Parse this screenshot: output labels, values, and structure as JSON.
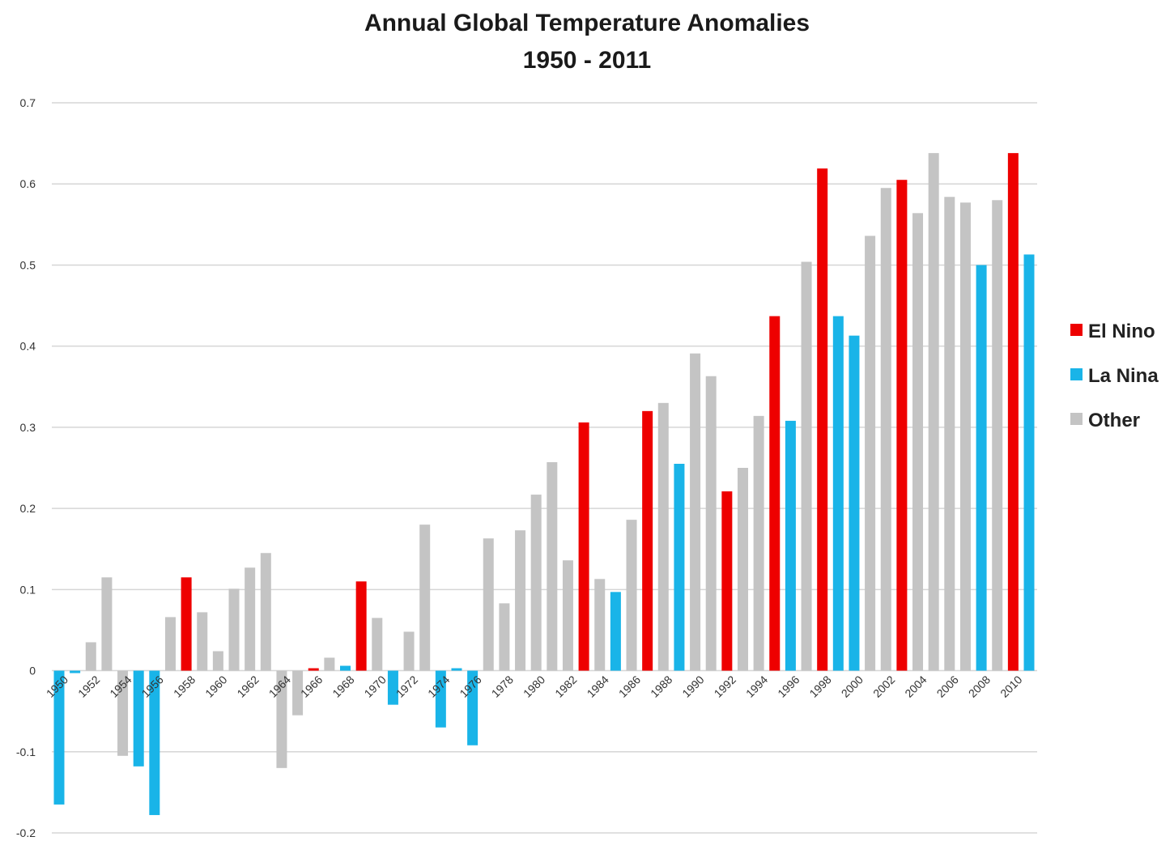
{
  "chart_data": {
    "type": "bar",
    "title": "Annual Global Temperature Anomalies",
    "subtitle": "1950 - 2011",
    "xlabel": "",
    "ylabel": "",
    "ylim": [
      -0.2,
      0.7
    ],
    "yticks": [
      "0.7",
      "0.6",
      "0.5",
      "0.4",
      "0.3",
      "0.2",
      "0.1",
      "0",
      "-0.1",
      "-0.2"
    ],
    "ytick_values": [
      0.7,
      0.6,
      0.5,
      0.4,
      0.3,
      0.2,
      0.1,
      0,
      -0.1,
      -0.2
    ],
    "grid": true,
    "legend_position": "right",
    "categories": [
      "1950",
      "1951",
      "1952",
      "1953",
      "1954",
      "1955",
      "1956",
      "1957",
      "1958",
      "1959",
      "1960",
      "1961",
      "1962",
      "1963",
      "1964",
      "1965",
      "1966",
      "1967",
      "1968",
      "1969",
      "1970",
      "1971",
      "1972",
      "1973",
      "1974",
      "1975",
      "1976",
      "1977",
      "1978",
      "1979",
      "1980",
      "1981",
      "1982",
      "1983",
      "1984",
      "1985",
      "1986",
      "1987",
      "1988",
      "1989",
      "1990",
      "1991",
      "1992",
      "1993",
      "1994",
      "1995",
      "1996",
      "1997",
      "1998",
      "1999",
      "2000",
      "2001",
      "2002",
      "2003",
      "2004",
      "2005",
      "2006",
      "2007",
      "2008",
      "2009",
      "2010",
      "2011"
    ],
    "xtick_labels": [
      "1950",
      "",
      "1952",
      "",
      "1954",
      "",
      "1956",
      "",
      "1958",
      "",
      "1960",
      "",
      "1962",
      "",
      "1964",
      "",
      "1966",
      "",
      "1968",
      "",
      "1970",
      "",
      "1972",
      "",
      "1974",
      "",
      "1976",
      "",
      "1978",
      "",
      "1980",
      "",
      "1982",
      "",
      "1984",
      "",
      "1986",
      "",
      "1988",
      "",
      "1990",
      "",
      "1992",
      "",
      "1994",
      "",
      "1996",
      "",
      "1998",
      "",
      "2000",
      "",
      "2002",
      "",
      "2004",
      "",
      "2006",
      "",
      "2008",
      "",
      "2010",
      ""
    ],
    "values": [
      -0.165,
      -0.003,
      0.035,
      0.115,
      -0.105,
      -0.118,
      -0.178,
      0.066,
      0.115,
      0.072,
      0.024,
      0.101,
      0.127,
      0.145,
      -0.12,
      -0.055,
      0.003,
      0.016,
      0.006,
      0.11,
      0.065,
      -0.042,
      0.048,
      0.18,
      -0.07,
      0.003,
      -0.092,
      0.163,
      0.083,
      0.173,
      0.217,
      0.257,
      0.136,
      0.306,
      0.113,
      0.097,
      0.186,
      0.32,
      0.33,
      0.255,
      0.391,
      0.363,
      0.221,
      0.25,
      0.314,
      0.437,
      0.308,
      0.504,
      0.619,
      0.437,
      0.413,
      0.536,
      0.595,
      0.605,
      0.564,
      0.638,
      0.584,
      0.577,
      0.5,
      0.58,
      0.638,
      0.513
    ],
    "phase": [
      "La Nina",
      "La Nina",
      "Other",
      "Other",
      "Other",
      "La Nina",
      "La Nina",
      "Other",
      "El Nino",
      "Other",
      "Other",
      "Other",
      "Other",
      "Other",
      "Other",
      "Other",
      "El Nino",
      "Other",
      "La Nina",
      "El Nino",
      "Other",
      "La Nina",
      "Other",
      "Other",
      "La Nina",
      "La Nina",
      "La Nina",
      "Other",
      "Other",
      "Other",
      "Other",
      "Other",
      "Other",
      "El Nino",
      "Other",
      "La Nina",
      "Other",
      "El Nino",
      "Other",
      "La Nina",
      "Other",
      "Other",
      "El Nino",
      "Other",
      "Other",
      "El Nino",
      "La Nina",
      "Other",
      "El Nino",
      "La Nina",
      "La Nina",
      "Other",
      "Other",
      "El Nino",
      "Other",
      "Other",
      "Other",
      "Other",
      "La Nina",
      "Other",
      "El Nino",
      "La Nina"
    ],
    "legend": [
      {
        "name": "El Nino",
        "color": "#ee0000"
      },
      {
        "name": "La Nina",
        "color": "#19b4e8"
      },
      {
        "name": "Other",
        "color": "#c4c4c4"
      }
    ],
    "colors": {
      "El Nino": "#ee0000",
      "La Nina": "#19b4e8",
      "Other": "#c4c4c4",
      "grid": "#d6d6d6",
      "text": "#222222"
    }
  }
}
